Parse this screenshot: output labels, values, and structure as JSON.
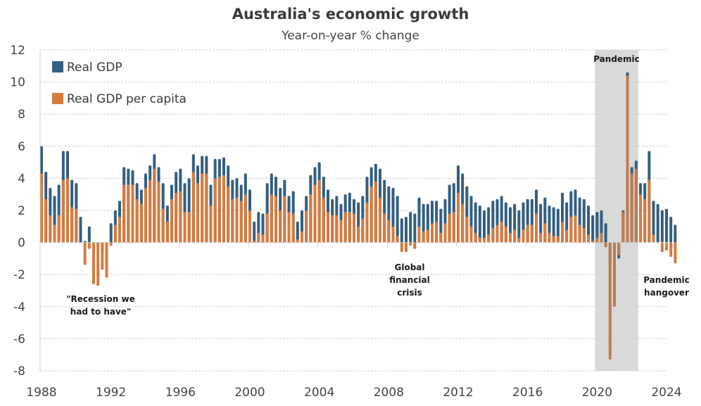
{
  "chart_data": {
    "type": "bar",
    "title": "Australia's economic growth",
    "subtitle": "Year-on-year % change",
    "xlabel": "",
    "ylabel": "",
    "ylim": [
      -8,
      12
    ],
    "yticks": [
      12,
      10,
      8,
      6,
      4,
      2,
      0,
      -2,
      -4,
      -6,
      -8
    ],
    "xticks": [
      "1988",
      "1992",
      "1996",
      "2000",
      "2004",
      "2008",
      "2012",
      "2016",
      "2020",
      "2024"
    ],
    "x_start": "1988 Q1",
    "frequency": "quarterly",
    "grid": true,
    "legend_position": "top-left",
    "colors": {
      "real_gdp": "#335f80",
      "real_gdp_per_capita": "#d57b3e",
      "shading": "#d9d9d9"
    },
    "series": [
      {
        "name": "Real GDP",
        "values": [
          6.0,
          4.4,
          3.4,
          2.9,
          3.6,
          5.7,
          5.7,
          3.9,
          3.7,
          1.6,
          0.1,
          1.0,
          -0.4,
          -0.3,
          -0.6,
          -0.9,
          1.2,
          2.0,
          2.6,
          4.7,
          4.6,
          4.5,
          3.7,
          3.3,
          4.3,
          4.8,
          5.5,
          4.7,
          3.7,
          2.3,
          3.6,
          4.4,
          4.6,
          3.7,
          4.0,
          5.5,
          4.8,
          5.4,
          5.4,
          3.6,
          5.2,
          5.2,
          5.3,
          4.8,
          3.9,
          4.0,
          3.6,
          4.3,
          3.3,
          1.3,
          1.9,
          1.8,
          3.7,
          4.3,
          4.1,
          3.4,
          3.9,
          2.9,
          3.2,
          1.3,
          2.0,
          2.9,
          4.2,
          4.7,
          5.0,
          4.1,
          3.3,
          2.7,
          2.9,
          2.4,
          3.0,
          3.1,
          2.7,
          2.5,
          2.9,
          4.1,
          4.7,
          4.9,
          4.6,
          3.9,
          3.5,
          3.4,
          2.9,
          1.5,
          1.6,
          1.9,
          1.8,
          2.8,
          2.4,
          2.4,
          2.6,
          2.6,
          2.1,
          2.7,
          3.6,
          3.7,
          4.8,
          4.3,
          3.5,
          2.9,
          2.5,
          2.3,
          2.0,
          2.2,
          2.6,
          2.7,
          2.9,
          2.5,
          2.2,
          2.4,
          2.0,
          2.5,
          2.7,
          2.7,
          3.3,
          2.4,
          2.8,
          2.3,
          2.2,
          2.1,
          3.1,
          2.5,
          3.2,
          3.3,
          2.8,
          2.7,
          2.3,
          1.7,
          1.9,
          2.0,
          1.2,
          -1.3,
          -0.3,
          -1.0,
          2.0,
          10.6,
          4.7,
          5.1,
          3.7,
          3.7,
          5.7,
          2.6,
          2.4,
          2.0,
          2.1,
          1.6,
          1.1
        ]
      },
      {
        "name": "Real GDP per capita",
        "values": [
          4.3,
          2.7,
          1.7,
          1.1,
          1.7,
          3.9,
          4.0,
          2.2,
          2.1,
          0.0,
          -1.4,
          -0.4,
          -2.6,
          -2.7,
          -1.7,
          -2.2,
          -0.2,
          1.1,
          1.6,
          3.6,
          3.6,
          3.6,
          2.7,
          2.4,
          3.4,
          3.9,
          4.6,
          3.8,
          2.1,
          1.3,
          2.7,
          3.1,
          3.2,
          1.9,
          1.9,
          4.4,
          3.7,
          4.3,
          4.3,
          2.3,
          4.0,
          4.1,
          4.2,
          3.5,
          2.7,
          2.8,
          2.6,
          3.0,
          2.0,
          0.1,
          0.6,
          0.5,
          1.8,
          3.0,
          2.9,
          2.0,
          2.9,
          1.9,
          1.8,
          0.2,
          0.7,
          2.0,
          3.0,
          3.6,
          3.9,
          2.8,
          1.9,
          1.7,
          1.7,
          1.4,
          1.9,
          1.9,
          1.8,
          1.0,
          1.5,
          2.5,
          3.5,
          3.8,
          2.8,
          1.8,
          1.4,
          1.0,
          0.4,
          -0.6,
          -0.6,
          -0.2,
          -0.4,
          1.0,
          0.7,
          0.8,
          1.2,
          1.3,
          0.6,
          1.2,
          1.8,
          1.9,
          3.1,
          2.4,
          1.6,
          1.0,
          0.6,
          0.3,
          0.3,
          0.5,
          0.9,
          1.1,
          1.3,
          1.0,
          0.6,
          0.8,
          0.3,
          0.8,
          1.1,
          1.1,
          1.8,
          0.6,
          1.2,
          0.6,
          0.4,
          0.4,
          1.3,
          0.8,
          1.6,
          1.7,
          1.1,
          0.9,
          0.5,
          0.1,
          0.3,
          0.6,
          -0.3,
          -7.3,
          -4.0,
          -0.8,
          1.9,
          10.4,
          4.3,
          4.6,
          3.0,
          2.7,
          3.9,
          0.5,
          0.0,
          -0.6,
          -0.5,
          -0.9,
          -1.3
        ]
      }
    ],
    "annotations": [
      {
        "lines": [
          "\"Recession we",
          "had to have\""
        ]
      },
      {
        "lines": [
          "Global",
          "financial",
          "crisis"
        ]
      },
      {
        "lines": [
          "Pandemic"
        ]
      },
      {
        "lines": [
          "Pandemic",
          "hangover"
        ]
      }
    ],
    "shaded_region": {
      "label": "Pandemic",
      "from": "2020 Q1",
      "to": "2022 Q2"
    }
  }
}
